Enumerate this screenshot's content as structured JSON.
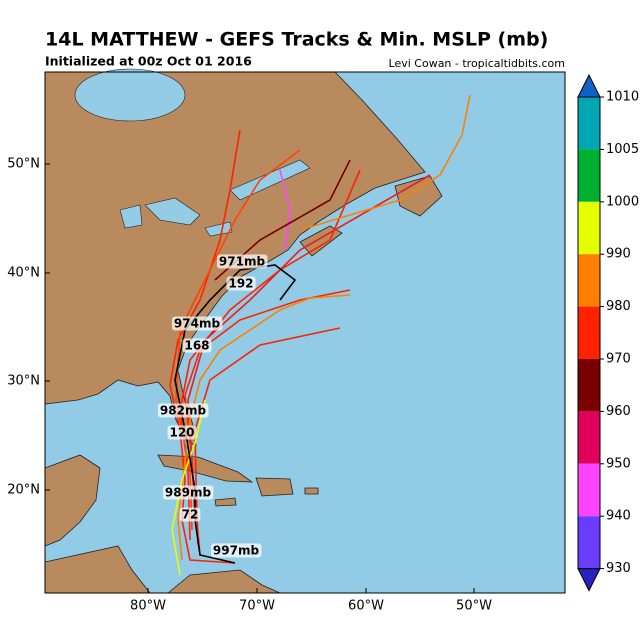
{
  "map": {
    "title": "14L MATTHEW - GEFS Tracks & Min. MSLP (mb)",
    "subtitle": "Initialized at 00z Oct 01 2016",
    "credit": "Levi Cowan - tropicaltidbits.com",
    "lat_labels": [
      "50°N",
      "40°N",
      "30°N",
      "20°N"
    ],
    "lon_labels": [
      "80°W",
      "70°W",
      "60°W",
      "50°W"
    ],
    "track_labels": [
      "997mb",
      "72",
      "989mb",
      "120",
      "982mb",
      "168",
      "974mb",
      "192",
      "971mb"
    ]
  },
  "colorbar": {
    "ticks": [
      1010,
      1005,
      1000,
      990,
      980,
      970,
      960,
      950,
      940,
      930
    ],
    "colors": [
      "#00a6b4",
      "#00b030",
      "#e4ff00",
      "#ff8000",
      "#ff2200",
      "#7a0000",
      "#e0005c",
      "#ff44ff",
      "#6a3cff"
    ],
    "extend_colors": [
      "#1060c8",
      "#2a20c0"
    ]
  }
}
